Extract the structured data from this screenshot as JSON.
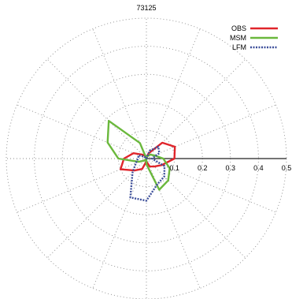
{
  "chart_data": {
    "type": "polar-line",
    "title": "73125",
    "r_ticks": [
      0.1,
      0.2,
      0.3,
      0.4,
      0.5
    ],
    "r_tick_labels": [
      "0.1",
      "0.2",
      "0.3",
      "0.4",
      "0.5"
    ],
    "rlim": [
      0,
      0.5
    ],
    "angle_spokes": 16,
    "grid": true,
    "legend_position": "top-right",
    "series": [
      {
        "name": "OBS",
        "color": "#e0252b",
        "style": "solid",
        "points": [
          [
            0,
            0.0
          ],
          [
            22.5,
            0.02
          ],
          [
            45,
            0.08
          ],
          [
            67.5,
            0.11
          ],
          [
            90,
            0.1
          ],
          [
            112.5,
            0.06
          ],
          [
            135,
            0.04
          ],
          [
            157.5,
            0.03
          ],
          [
            180,
            0.01
          ],
          [
            202.5,
            0.04
          ],
          [
            225,
            0.06
          ],
          [
            247.5,
            0.1
          ],
          [
            270,
            0.08
          ],
          [
            292.5,
            0.05
          ],
          [
            315,
            0.02
          ],
          [
            337.5,
            0.01
          ]
        ]
      },
      {
        "name": "MSM",
        "color": "#6ab83c",
        "style": "solid",
        "points": [
          [
            0,
            0.0
          ],
          [
            22.5,
            0.01
          ],
          [
            45,
            0.02
          ],
          [
            67.5,
            0.03
          ],
          [
            90,
            0.06
          ],
          [
            112.5,
            0.09
          ],
          [
            135,
            0.11
          ],
          [
            157.5,
            0.12
          ],
          [
            180,
            0.02
          ],
          [
            202.5,
            0.0
          ],
          [
            225,
            0.01
          ],
          [
            247.5,
            0.03
          ],
          [
            270,
            0.1
          ],
          [
            292.5,
            0.15
          ],
          [
            315,
            0.19
          ],
          [
            337.5,
            0.06
          ]
        ]
      },
      {
        "name": "LFM",
        "color": "#3d4f9a",
        "style": "dotted",
        "points": [
          [
            0,
            0.0
          ],
          [
            22.5,
            0.03
          ],
          [
            45,
            0.06
          ],
          [
            67.5,
            0.05
          ],
          [
            90,
            0.02
          ],
          [
            112.5,
            0.07
          ],
          [
            135,
            0.09
          ],
          [
            157.5,
            0.1
          ],
          [
            180,
            0.15
          ],
          [
            202.5,
            0.15
          ],
          [
            225,
            0.07
          ],
          [
            247.5,
            0.04
          ],
          [
            270,
            0.03
          ],
          [
            292.5,
            0.03
          ],
          [
            315,
            0.01
          ],
          [
            337.5,
            0.0
          ]
        ]
      }
    ]
  }
}
